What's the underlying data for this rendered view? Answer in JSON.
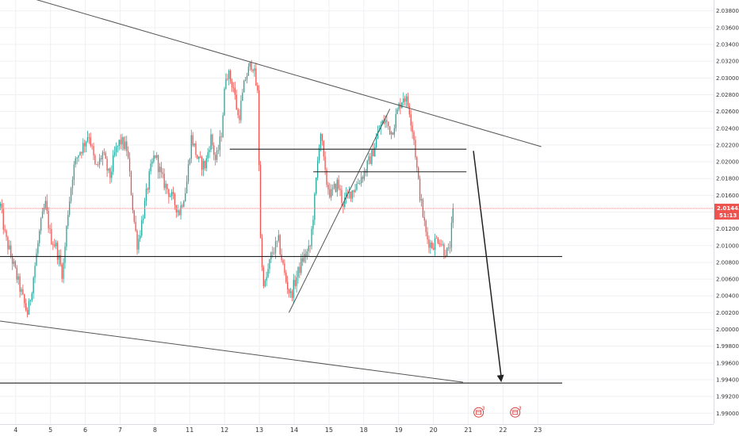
{
  "colors": {
    "up": "#26a69a",
    "down": "#ef5350",
    "grid": "#eef0f3",
    "trendline": "#555555",
    "level": "#222222",
    "price_line": "#f08080",
    "price_tag": "#ef5350",
    "background": "#ffffff"
  },
  "chart_data": {
    "type": "candlestick",
    "title": "",
    "xlabel": "",
    "ylabel": "",
    "grid": true,
    "ylim": [
      1.9887,
      2.0393
    ],
    "xlim": [
      3.55,
      24.05
    ],
    "y_ticks": [
      "2.03800",
      "2.03600",
      "2.03400",
      "2.03200",
      "2.03000",
      "2.02800",
      "2.02600",
      "2.02400",
      "2.02200",
      "2.02000",
      "2.01800",
      "2.01600",
      "2.01400",
      "2.01200",
      "2.01000",
      "2.00800",
      "2.00600",
      "2.00400",
      "2.00200",
      "2.00000",
      "1.99800",
      "1.99600",
      "1.99400",
      "1.99200",
      "1.99000"
    ],
    "x_ticks": [
      {
        "label": "4",
        "x": 4
      },
      {
        "label": "5",
        "x": 5
      },
      {
        "label": "6",
        "x": 6
      },
      {
        "label": "7",
        "x": 7
      },
      {
        "label": "8",
        "x": 8
      },
      {
        "label": "11",
        "x": 9
      },
      {
        "label": "12",
        "x": 10
      },
      {
        "label": "13",
        "x": 11
      },
      {
        "label": "14",
        "x": 12
      },
      {
        "label": "15",
        "x": 13
      },
      {
        "label": "18",
        "x": 14
      },
      {
        "label": "19",
        "x": 15
      },
      {
        "label": "20",
        "x": 16
      },
      {
        "label": "21",
        "x": 17
      },
      {
        "label": "22",
        "x": 18
      },
      {
        "label": "23",
        "x": 19
      }
    ],
    "current_price": {
      "label": "2.01443",
      "countdown": "51:13",
      "value": 2.01443
    },
    "path_points": [
      [
        3.55,
        2.015
      ],
      [
        3.7,
        2.011
      ],
      [
        3.85,
        2.009
      ],
      [
        4.05,
        2.006
      ],
      [
        4.25,
        2.003
      ],
      [
        4.35,
        2.0018
      ],
      [
        4.5,
        2.006
      ],
      [
        4.7,
        2.012
      ],
      [
        4.85,
        2.015
      ],
      [
        5.0,
        2.011
      ],
      [
        5.15,
        2.01
      ],
      [
        5.35,
        2.0065
      ],
      [
        5.5,
        2.014
      ],
      [
        5.65,
        2.019
      ],
      [
        5.8,
        2.021
      ],
      [
        5.95,
        2.022
      ],
      [
        6.1,
        2.0235
      ],
      [
        6.3,
        2.019
      ],
      [
        6.5,
        2.021
      ],
      [
        6.7,
        2.018
      ],
      [
        6.85,
        2.021
      ],
      [
        7.0,
        2.0225
      ],
      [
        7.2,
        2.0215
      ],
      [
        7.4,
        2.013
      ],
      [
        7.5,
        2.01
      ],
      [
        7.65,
        2.0135
      ],
      [
        7.85,
        2.0185
      ],
      [
        8.0,
        2.021
      ],
      [
        8.2,
        2.018
      ],
      [
        8.45,
        2.016
      ],
      [
        8.7,
        2.014
      ],
      [
        8.9,
        2.017
      ],
      [
        9.05,
        2.023
      ],
      [
        9.25,
        2.02
      ],
      [
        9.45,
        2.0195
      ],
      [
        9.6,
        2.023
      ],
      [
        9.75,
        2.02
      ],
      [
        9.9,
        2.023
      ],
      [
        10.05,
        2.031
      ],
      [
        10.25,
        2.029
      ],
      [
        10.4,
        2.025
      ],
      [
        10.6,
        2.03
      ],
      [
        10.8,
        2.032
      ],
      [
        10.95,
        2.028
      ],
      [
        11.05,
        2.008
      ],
      [
        11.15,
        2.005
      ],
      [
        11.35,
        2.009
      ],
      [
        11.55,
        2.0105
      ],
      [
        11.75,
        2.006
      ],
      [
        11.9,
        2.004
      ],
      [
        12.05,
        2.006
      ],
      [
        12.25,
        2.0085
      ],
      [
        12.45,
        2.0095
      ],
      [
        12.6,
        2.016
      ],
      [
        12.75,
        2.024
      ],
      [
        12.9,
        2.018
      ],
      [
        13.05,
        2.016
      ],
      [
        13.25,
        2.0175
      ],
      [
        13.4,
        2.015
      ],
      [
        13.55,
        2.016
      ],
      [
        13.75,
        2.017
      ],
      [
        13.9,
        2.018
      ],
      [
        14.05,
        2.019
      ],
      [
        14.25,
        2.021
      ],
      [
        14.45,
        2.024
      ],
      [
        14.6,
        2.025
      ],
      [
        14.8,
        2.0235
      ],
      [
        15.0,
        2.0265
      ],
      [
        15.15,
        2.028
      ],
      [
        15.3,
        2.0265
      ],
      [
        15.45,
        2.0225
      ],
      [
        15.55,
        2.018
      ],
      [
        15.65,
        2.015
      ],
      [
        15.8,
        2.011
      ],
      [
        15.95,
        2.01
      ],
      [
        16.15,
        2.011
      ],
      [
        16.3,
        2.0095
      ],
      [
        16.45,
        2.009
      ],
      [
        16.58,
        2.0145
      ]
    ],
    "lines": [
      {
        "name": "upper-channel-trendline",
        "style": "trend",
        "points": [
          [
            4.05,
            2.04
          ],
          [
            19.1,
            2.0218
          ]
        ]
      },
      {
        "name": "lower-channel-trendline",
        "style": "trend",
        "points": [
          [
            3.55,
            2.001
          ],
          [
            16.85,
            1.9937
          ]
        ]
      },
      {
        "name": "ascending-trendline",
        "style": "trend",
        "points": [
          [
            11.85,
            2.002
          ],
          [
            14.75,
            2.0263
          ]
        ]
      },
      {
        "name": "resistance-level-upper",
        "style": "level",
        "points": [
          [
            10.15,
            2.0215
          ],
          [
            16.95,
            2.0215
          ]
        ]
      },
      {
        "name": "resistance-level-lower",
        "style": "level",
        "points": [
          [
            12.55,
            2.0188
          ],
          [
            16.95,
            2.0188
          ]
        ]
      },
      {
        "name": "support-level",
        "style": "level",
        "points": [
          [
            3.55,
            2.0087
          ],
          [
            19.7,
            2.0087
          ]
        ]
      },
      {
        "name": "target-level",
        "style": "level",
        "points": [
          [
            3.55,
            1.9936
          ],
          [
            19.7,
            1.9936
          ]
        ]
      }
    ],
    "projection_arrow": {
      "from": [
        17.15,
        2.0213
      ],
      "to": [
        17.95,
        1.9937
      ]
    },
    "calendar_events": [
      {
        "x": 17.3,
        "y": 1.9901,
        "count": "3"
      },
      {
        "x": 18.35,
        "y": 1.9901,
        "count": "3"
      }
    ]
  }
}
